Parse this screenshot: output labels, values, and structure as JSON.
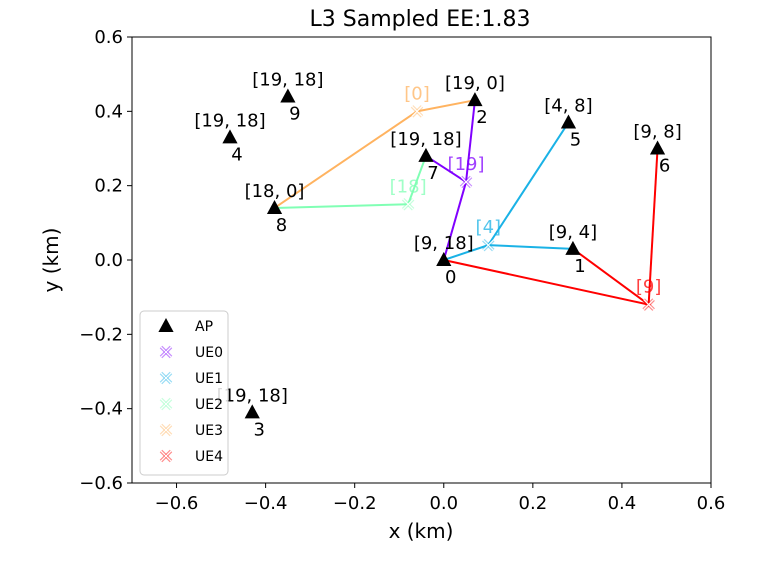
{
  "chart_data": {
    "type": "scatter",
    "title": "L3 Sampled EE:1.83",
    "xlabel": "x (km)",
    "ylabel": "y (km)",
    "xlim": [
      -0.7,
      0.6
    ],
    "ylim": [
      -0.6,
      0.6
    ],
    "xticks": [
      -0.6,
      -0.4,
      -0.2,
      0.0,
      0.2,
      0.4,
      0.6
    ],
    "yticks": [
      -0.6,
      -0.4,
      -0.2,
      0.0,
      0.2,
      0.4,
      0.6
    ],
    "xtick_labels": [
      "−0.6",
      "−0.4",
      "−0.2",
      "0.0",
      "0.2",
      "0.4",
      "0.6"
    ],
    "ytick_labels": [
      "−0.6",
      "−0.4",
      "−0.2",
      "0.0",
      "0.2",
      "0.4",
      "0.6"
    ],
    "grid": false,
    "legend_position": "lower-left",
    "aps": [
      {
        "id": "0",
        "x": 0.0,
        "y": 0.0,
        "label": "[9, 18]"
      },
      {
        "id": "1",
        "x": 0.29,
        "y": 0.03,
        "label": "[9, 4]"
      },
      {
        "id": "2",
        "x": 0.07,
        "y": 0.43,
        "label": "[19, 0]"
      },
      {
        "id": "3",
        "x": -0.43,
        "y": -0.41,
        "label": "[19, 18]"
      },
      {
        "id": "4",
        "x": -0.48,
        "y": 0.33,
        "label": "[19, 18]"
      },
      {
        "id": "5",
        "x": 0.28,
        "y": 0.37,
        "label": "[4, 8]"
      },
      {
        "id": "6",
        "x": 0.48,
        "y": 0.3,
        "label": "[9, 8]"
      },
      {
        "id": "7",
        "x": -0.04,
        "y": 0.28,
        "label": "[19, 18]"
      },
      {
        "id": "8",
        "x": -0.38,
        "y": 0.14,
        "label": "[18, 0]"
      },
      {
        "id": "9",
        "x": -0.35,
        "y": 0.44,
        "label": "[19, 18]"
      }
    ],
    "series": [
      {
        "name": "UE0",
        "color": "#8000ff",
        "ue": {
          "x": 0.05,
          "y": 0.21
        },
        "label": "[19]",
        "connections": [
          0,
          2,
          7
        ]
      },
      {
        "name": "UE1",
        "color": "#1ab2e6",
        "ue": {
          "x": 0.1,
          "y": 0.04
        },
        "label": "[4]",
        "connections": [
          0,
          5,
          1
        ]
      },
      {
        "name": "UE2",
        "color": "#80ffb4",
        "ue": {
          "x": -0.08,
          "y": 0.15
        },
        "label": "[18]",
        "connections": [
          8,
          7
        ]
      },
      {
        "name": "UE3",
        "color": "#ffb360",
        "ue": {
          "x": -0.06,
          "y": 0.4
        },
        "label": "[0]",
        "connections": [
          8,
          2
        ]
      },
      {
        "name": "UE4",
        "color": "#ff0000",
        "ue": {
          "x": 0.46,
          "y": -0.12
        },
        "label": "[9]",
        "connections": [
          0,
          1,
          6
        ]
      }
    ],
    "legend": [
      {
        "label": "AP",
        "marker": "triangle",
        "color": "#000000"
      },
      {
        "label": "UE0",
        "marker": "x",
        "color": "#8000ff"
      },
      {
        "label": "UE1",
        "marker": "x",
        "color": "#1ab2e6"
      },
      {
        "label": "UE2",
        "marker": "x",
        "color": "#80ffb4"
      },
      {
        "label": "UE3",
        "marker": "x",
        "color": "#ffb360"
      },
      {
        "label": "UE4",
        "marker": "x",
        "color": "#ff0000"
      }
    ]
  }
}
